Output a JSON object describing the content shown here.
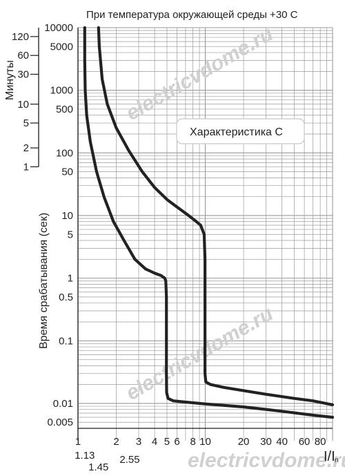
{
  "chart_data": {
    "type": "line",
    "title": "При температура окружающей среды +30 С",
    "annotation": "Характеристика С",
    "xlabel": "I/I",
    "xlabel_subscript": "n",
    "ylabel": "Время срабатывания (сек)",
    "y2label": "Минуты",
    "xscale": "log",
    "yscale": "log",
    "grid": true,
    "xlim": [
      1,
      100
    ],
    "ylim": [
      0.004,
      10000
    ],
    "x_ticks": [
      {
        "value": 1,
        "label": "1"
      },
      {
        "value": 2,
        "label": "2"
      },
      {
        "value": 3,
        "label": "3"
      },
      {
        "value": 4,
        "label": "4"
      },
      {
        "value": 5,
        "label": "5"
      },
      {
        "value": 6,
        "label": "6"
      },
      {
        "value": 8,
        "label": "8"
      },
      {
        "value": 10,
        "label": "10"
      },
      {
        "value": 20,
        "label": "20"
      },
      {
        "value": 30,
        "label": "30"
      },
      {
        "value": 40,
        "label": "40"
      },
      {
        "value": 60,
        "label": "60"
      },
      {
        "value": 80,
        "label": "80"
      }
    ],
    "x_extra_ticks": [
      {
        "value": 1.13,
        "label": "1.13"
      },
      {
        "value": 1.45,
        "label": "1.45"
      },
      {
        "value": 2.55,
        "label": "2.55"
      }
    ],
    "y_ticks": [
      {
        "value": 10000,
        "label": "10000"
      },
      {
        "value": 5000,
        "label": "5000"
      },
      {
        "value": 1000,
        "label": "1000"
      },
      {
        "value": 500,
        "label": "500"
      },
      {
        "value": 100,
        "label": "100"
      },
      {
        "value": 50,
        "label": "50"
      },
      {
        "value": 10,
        "label": "10"
      },
      {
        "value": 5,
        "label": "5"
      },
      {
        "value": 1,
        "label": "1"
      },
      {
        "value": 0.5,
        "label": "0.5"
      },
      {
        "value": 0.1,
        "label": "0.1"
      },
      {
        "value": 0.01,
        "label": "0.01"
      },
      {
        "value": 0.005,
        "label": "0.005"
      }
    ],
    "minute_ticks": [
      {
        "value": 7200,
        "label": "120"
      },
      {
        "value": 3600,
        "label": "60"
      },
      {
        "value": 1800,
        "label": "30"
      },
      {
        "value": 600,
        "label": "10"
      },
      {
        "value": 300,
        "label": "5"
      },
      {
        "value": 120,
        "label": "2"
      },
      {
        "value": 60,
        "label": "1"
      }
    ],
    "series": [
      {
        "x": [
          1.13,
          1.13,
          1.14,
          1.17,
          1.25,
          1.4,
          1.6,
          1.9,
          2.3,
          2.8,
          3.4,
          4.0,
          4.5,
          4.8,
          4.9,
          4.95,
          4.95,
          4.97,
          5.1,
          5.6,
          7,
          10,
          20,
          40,
          70,
          100
        ],
        "y": [
          10000,
          3000,
          1000,
          400,
          150,
          50,
          20,
          8,
          4,
          2,
          1.4,
          1.2,
          1.1,
          1.0,
          0.9,
          0.5,
          0.03,
          0.015,
          0.012,
          0.011,
          0.0105,
          0.0098,
          0.0088,
          0.0075,
          0.0065,
          0.006
        ]
      },
      {
        "x": [
          1.45,
          1.47,
          1.55,
          1.7,
          2.0,
          2.5,
          3.2,
          4.0,
          5.0,
          6.2,
          7.4,
          8.5,
          9.2,
          9.8,
          9.95,
          9.95,
          10.1,
          11,
          14,
          20,
          30,
          50,
          70,
          100
        ],
        "y": [
          10000,
          5000,
          1500,
          600,
          250,
          110,
          50,
          28,
          18,
          13,
          10,
          8,
          7,
          5,
          2,
          0.03,
          0.022,
          0.02,
          0.018,
          0.016,
          0.014,
          0.012,
          0.011,
          0.0095
        ]
      }
    ],
    "colors": {
      "line": "#222222",
      "grid": "#9a9a9a",
      "axis": "#1a1a1a"
    }
  },
  "watermark": "electricvdome.ru"
}
